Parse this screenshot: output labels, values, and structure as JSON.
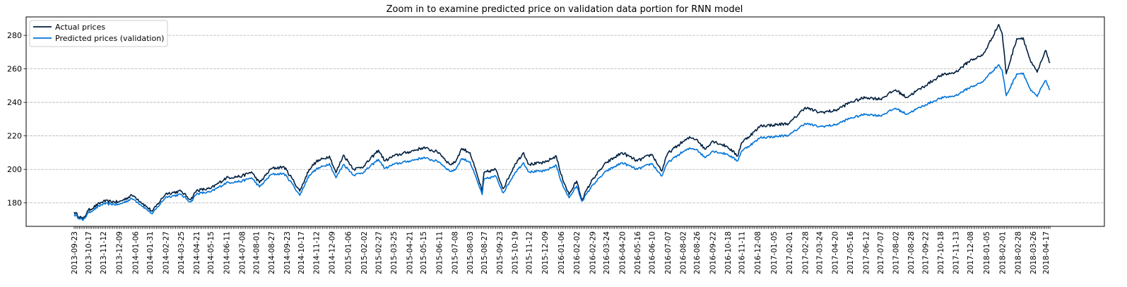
{
  "chart_data": {
    "type": "line",
    "title": "Zoom in to examine predicted price on validation data portion for RNN model",
    "xlabel": "",
    "ylabel": "",
    "x_start": "2013-09-23",
    "x_end": "2018-04-24",
    "ylim": [
      166,
      291
    ],
    "yticks": [
      180,
      200,
      220,
      240,
      260,
      280
    ],
    "grid": "horizontal dashed",
    "legend_position": "top-left",
    "xtick_labels": [
      "2013-09-23",
      "2013-10-17",
      "2013-11-12",
      "2013-12-09",
      "2014-01-06",
      "2014-01-31",
      "2014-02-27",
      "2014-03-25",
      "2014-04-21",
      "2014-05-15",
      "2014-06-11",
      "2014-07-08",
      "2014-08-01",
      "2014-08-27",
      "2014-09-23",
      "2014-10-17",
      "2014-11-12",
      "2014-12-09",
      "2015-01-06",
      "2015-02-02",
      "2015-02-27",
      "2015-03-25",
      "2015-04-21",
      "2015-05-15",
      "2015-06-11",
      "2015-07-08",
      "2015-08-03",
      "2015-08-27",
      "2015-09-23",
      "2015-10-19",
      "2015-11-12",
      "2015-12-09",
      "2016-01-06",
      "2016-02-02",
      "2016-02-29",
      "2016-03-24",
      "2016-04-20",
      "2016-05-16",
      "2016-06-10",
      "2016-07-07",
      "2016-08-02",
      "2016-08-26",
      "2016-09-22",
      "2016-10-18",
      "2016-11-11",
      "2016-12-08",
      "2017-01-05",
      "2017-02-01",
      "2017-02-28",
      "2017-03-24",
      "2017-04-20",
      "2017-05-16",
      "2017-06-12",
      "2017-07-07",
      "2017-08-02",
      "2017-08-28",
      "2017-09-22",
      "2017-10-18",
      "2017-11-13",
      "2017-12-08",
      "2018-01-05",
      "2018-02-01",
      "2018-02-28",
      "2018-03-26",
      "2018-04-17"
    ],
    "series": [
      {
        "name": "Actual prices",
        "color": "#001f3f",
        "points": [
          [
            "2013-09-23",
            174.5
          ],
          [
            "2013-10-08",
            170.2
          ],
          [
            "2013-10-17",
            175.5
          ],
          [
            "2013-11-12",
            181
          ],
          [
            "2013-12-09",
            180.5
          ],
          [
            "2013-12-31",
            184.5
          ],
          [
            "2014-01-06",
            183.5
          ],
          [
            "2014-01-24",
            178
          ],
          [
            "2014-02-04",
            175
          ],
          [
            "2014-02-27",
            185.5
          ],
          [
            "2014-03-25",
            187
          ],
          [
            "2014-04-11",
            182
          ],
          [
            "2014-04-21",
            187.5
          ],
          [
            "2014-05-15",
            188.5
          ],
          [
            "2014-06-11",
            195
          ],
          [
            "2014-07-08",
            196
          ],
          [
            "2014-07-24",
            198.5
          ],
          [
            "2014-08-07",
            192
          ],
          [
            "2014-08-27",
            200.5
          ],
          [
            "2014-09-18",
            201.5
          ],
          [
            "2014-10-01",
            195
          ],
          [
            "2014-10-15",
            187
          ],
          [
            "2014-10-31",
            200
          ],
          [
            "2014-11-12",
            204.5
          ],
          [
            "2014-12-05",
            208
          ],
          [
            "2014-12-16",
            198
          ],
          [
            "2014-12-29",
            208.5
          ],
          [
            "2015-01-16",
            200
          ],
          [
            "2015-02-02",
            202
          ],
          [
            "2015-02-27",
            211.5
          ],
          [
            "2015-03-10",
            205
          ],
          [
            "2015-03-25",
            208
          ],
          [
            "2015-04-21",
            210.5
          ],
          [
            "2015-05-15",
            213
          ],
          [
            "2015-06-11",
            210
          ],
          [
            "2015-06-29",
            203
          ],
          [
            "2015-07-08",
            204
          ],
          [
            "2015-07-20",
            212.5
          ],
          [
            "2015-08-03",
            210
          ],
          [
            "2015-08-24",
            187
          ],
          [
            "2015-08-27",
            198
          ],
          [
            "2015-09-16",
            200
          ],
          [
            "2015-09-29",
            188.5
          ],
          [
            "2015-10-19",
            203
          ],
          [
            "2015-11-03",
            210
          ],
          [
            "2015-11-12",
            203
          ],
          [
            "2015-12-09",
            204
          ],
          [
            "2015-12-29",
            208
          ],
          [
            "2016-01-06",
            197
          ],
          [
            "2016-01-20",
            185
          ],
          [
            "2016-02-02",
            193
          ],
          [
            "2016-02-11",
            182
          ],
          [
            "2016-02-29",
            194
          ],
          [
            "2016-03-24",
            204
          ],
          [
            "2016-04-20",
            210
          ],
          [
            "2016-05-16",
            205
          ],
          [
            "2016-06-10",
            209
          ],
          [
            "2016-06-27",
            199
          ],
          [
            "2016-07-07",
            209.5
          ],
          [
            "2016-08-02",
            216.5
          ],
          [
            "2016-08-15",
            219
          ],
          [
            "2016-08-26",
            218
          ],
          [
            "2016-09-09",
            212
          ],
          [
            "2016-09-22",
            217
          ],
          [
            "2016-10-18",
            213.5
          ],
          [
            "2016-11-04",
            208
          ],
          [
            "2016-11-11",
            216
          ],
          [
            "2016-12-08",
            224
          ],
          [
            "2016-12-13",
            226
          ],
          [
            "2017-01-05",
            226.5
          ],
          [
            "2017-02-01",
            227.5
          ],
          [
            "2017-02-28",
            237
          ],
          [
            "2017-03-24",
            234
          ],
          [
            "2017-04-20",
            235
          ],
          [
            "2017-05-16",
            240
          ],
          [
            "2017-06-12",
            243
          ],
          [
            "2017-07-07",
            242
          ],
          [
            "2017-08-02",
            247.5
          ],
          [
            "2017-08-21",
            243
          ],
          [
            "2017-09-22",
            250
          ],
          [
            "2017-10-18",
            256
          ],
          [
            "2017-11-13",
            258
          ],
          [
            "2017-12-08",
            265
          ],
          [
            "2017-12-29",
            268
          ],
          [
            "2018-01-05",
            272
          ],
          [
            "2018-01-26",
            286.5
          ],
          [
            "2018-02-01",
            281
          ],
          [
            "2018-02-08",
            257
          ],
          [
            "2018-02-26",
            278
          ],
          [
            "2018-03-09",
            278.5
          ],
          [
            "2018-03-22",
            264
          ],
          [
            "2018-04-02",
            258
          ],
          [
            "2018-04-11",
            266
          ],
          [
            "2018-04-17",
            271
          ],
          [
            "2018-04-24",
            263.5
          ]
        ]
      },
      {
        "name": "Predicted prices (validation)",
        "color": "#0074d9",
        "points": [
          [
            "2013-09-23",
            173
          ],
          [
            "2013-10-08",
            169.5
          ],
          [
            "2013-10-17",
            174
          ],
          [
            "2013-11-12",
            179.5
          ],
          [
            "2013-12-09",
            179
          ],
          [
            "2013-12-31",
            182.5
          ],
          [
            "2014-01-06",
            181.5
          ],
          [
            "2014-01-24",
            176.5
          ],
          [
            "2014-02-04",
            173.5
          ],
          [
            "2014-02-27",
            183.5
          ],
          [
            "2014-03-25",
            185
          ],
          [
            "2014-04-11",
            180.5
          ],
          [
            "2014-04-21",
            185.5
          ],
          [
            "2014-05-15",
            186.5
          ],
          [
            "2014-06-11",
            192
          ],
          [
            "2014-07-08",
            193
          ],
          [
            "2014-07-24",
            195
          ],
          [
            "2014-08-07",
            189.5
          ],
          [
            "2014-08-27",
            197
          ],
          [
            "2014-09-18",
            197.5
          ],
          [
            "2014-10-01",
            192
          ],
          [
            "2014-10-15",
            184.5
          ],
          [
            "2014-10-31",
            196.5
          ],
          [
            "2014-11-12",
            200
          ],
          [
            "2014-12-05",
            203.5
          ],
          [
            "2014-12-16",
            195
          ],
          [
            "2014-12-29",
            203
          ],
          [
            "2015-01-16",
            196.5
          ],
          [
            "2015-02-02",
            198.5
          ],
          [
            "2015-02-27",
            206
          ],
          [
            "2015-03-10",
            200.5
          ],
          [
            "2015-03-25",
            203
          ],
          [
            "2015-04-21",
            205
          ],
          [
            "2015-05-15",
            207
          ],
          [
            "2015-06-11",
            204.5
          ],
          [
            "2015-06-29",
            199
          ],
          [
            "2015-07-08",
            199.5
          ],
          [
            "2015-07-20",
            206.5
          ],
          [
            "2015-08-03",
            204.5
          ],
          [
            "2015-08-24",
            185
          ],
          [
            "2015-08-27",
            194
          ],
          [
            "2015-09-16",
            196
          ],
          [
            "2015-09-29",
            186
          ],
          [
            "2015-10-19",
            198
          ],
          [
            "2015-11-03",
            204
          ],
          [
            "2015-11-12",
            198.5
          ],
          [
            "2015-12-09",
            199
          ],
          [
            "2015-12-29",
            202.5
          ],
          [
            "2016-01-06",
            193
          ],
          [
            "2016-01-20",
            183
          ],
          [
            "2016-02-02",
            190
          ],
          [
            "2016-02-11",
            181
          ],
          [
            "2016-02-29",
            190.5
          ],
          [
            "2016-03-24",
            199
          ],
          [
            "2016-04-20",
            204
          ],
          [
            "2016-05-16",
            200
          ],
          [
            "2016-06-10",
            203.5
          ],
          [
            "2016-06-27",
            196
          ],
          [
            "2016-07-07",
            204
          ],
          [
            "2016-08-02",
            210.5
          ],
          [
            "2016-08-15",
            212.5
          ],
          [
            "2016-08-26",
            212
          ],
          [
            "2016-09-09",
            207
          ],
          [
            "2016-09-22",
            211
          ],
          [
            "2016-10-18",
            209
          ],
          [
            "2016-11-04",
            205
          ],
          [
            "2016-11-11",
            211
          ],
          [
            "2016-12-08",
            217.5
          ],
          [
            "2016-12-13",
            219
          ],
          [
            "2017-01-05",
            219.5
          ],
          [
            "2017-02-01",
            220.5
          ],
          [
            "2017-02-28",
            227.5
          ],
          [
            "2017-03-24",
            225.5
          ],
          [
            "2017-04-20",
            226.5
          ],
          [
            "2017-05-16",
            230.5
          ],
          [
            "2017-06-12",
            233
          ],
          [
            "2017-07-07",
            232
          ],
          [
            "2017-08-02",
            236.5
          ],
          [
            "2017-08-21",
            233
          ],
          [
            "2017-09-22",
            238.5
          ],
          [
            "2017-10-18",
            242.5
          ],
          [
            "2017-11-13",
            244
          ],
          [
            "2017-12-08",
            249
          ],
          [
            "2017-12-29",
            252
          ],
          [
            "2018-01-05",
            255
          ],
          [
            "2018-01-26",
            262.5
          ],
          [
            "2018-02-01",
            259
          ],
          [
            "2018-02-08",
            244
          ],
          [
            "2018-02-26",
            257
          ],
          [
            "2018-03-09",
            257.5
          ],
          [
            "2018-03-22",
            247
          ],
          [
            "2018-04-02",
            243.5
          ],
          [
            "2018-04-11",
            250
          ],
          [
            "2018-04-17",
            253
          ],
          [
            "2018-04-24",
            247.5
          ]
        ]
      }
    ]
  }
}
